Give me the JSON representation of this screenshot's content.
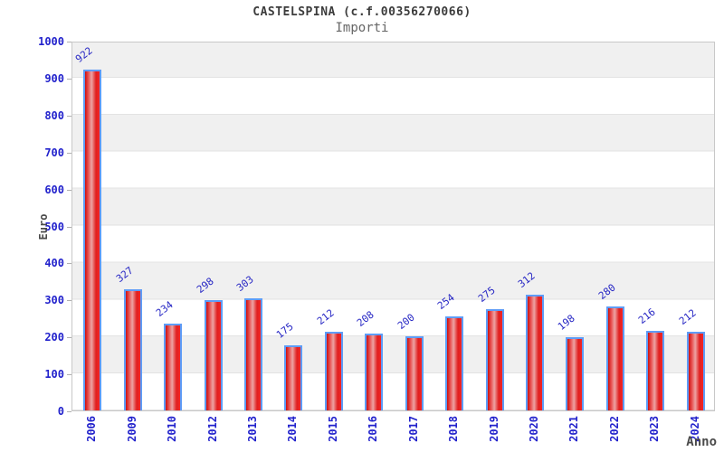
{
  "chart_data": {
    "type": "bar",
    "title": "CASTELSPINA (c.f.00356270066)",
    "subtitle": "Importi",
    "xlabel": "Anno",
    "ylabel": "Euro",
    "categories": [
      "2006",
      "2009",
      "2010",
      "2012",
      "2013",
      "2014",
      "2015",
      "2016",
      "2017",
      "2018",
      "2019",
      "2020",
      "2021",
      "2022",
      "2023",
      "2024"
    ],
    "values": [
      922,
      327,
      234,
      298,
      303,
      175,
      212,
      208,
      200,
      254,
      275,
      312,
      198,
      280,
      216,
      212
    ],
    "ylim": [
      0,
      1000
    ],
    "ytick_step": 100,
    "ytick_labels": [
      "0",
      "100",
      "200",
      "300",
      "400",
      "500",
      "600",
      "700",
      "800",
      "900",
      "1000"
    ],
    "grid": "horizontal-bands-alternating",
    "legend_position": "none",
    "colors": {
      "bar_fill_edge": "#cc0f0f",
      "bar_fill_highlight": "#eda3a3",
      "bar_border": "#5e9cf7",
      "tick_text": "#2222cc",
      "value_label_text": "#2626c4",
      "axis_title_text": "#4a4a4a",
      "title_text": "#3c3c3c",
      "subtitle_text": "#666666",
      "band_gray": "#f0f0f0",
      "plot_border": "#c8c8c8"
    }
  }
}
